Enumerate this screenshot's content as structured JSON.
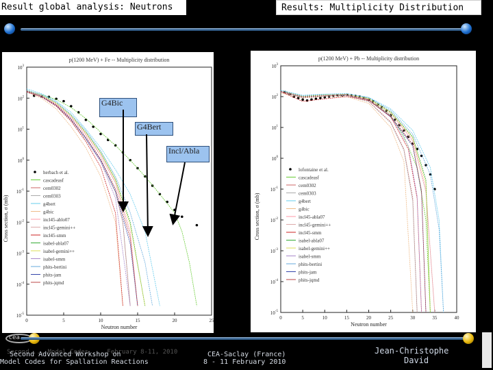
{
  "slide": {
    "title_left": "Result global analysis: Neutrons",
    "title_right": "Results: Multiplicity Distribution"
  },
  "colors": {
    "accent_blue": "#1e6fcf",
    "accent_gold": "#e8b70a",
    "annotation_fill": "#9cc3ef"
  },
  "annotations": [
    {
      "label": "G4Bic"
    },
    {
      "label": "G4Bert"
    },
    {
      "label": "Incl/Abla"
    }
  ],
  "footer": {
    "workshop_line1": "Second Advanced Workshop on",
    "workshop_line2": "Model Codes for Spallation Reactions",
    "workshop_ghost": "Second ... Model Codes ... February 8-11, 2010",
    "location_line1": "CEA-Saclay (France)",
    "location_line2": "8 - 11 February 2010",
    "author_line1": "Jean-Christophe",
    "author_line2": "David",
    "logo_text": "cea"
  },
  "chart_data": [
    {
      "type": "line",
      "title": "p(1200 MeV) + Fe -- Multiplicity distribution",
      "xlabel": "Neutron number",
      "ylabel": "Cross section, σ (mb)",
      "xlim": [
        0,
        25
      ],
      "xticks": [
        0,
        5,
        10,
        15,
        20,
        25
      ],
      "yscale": "log",
      "ylim": [
        1e-05,
        1000
      ],
      "yticks": [
        "10^-5",
        "10^-4",
        "10^-3",
        "10^-2",
        "10^-1",
        "10^0",
        "10^1",
        "10^2",
        "10^3"
      ],
      "legend_position": "lower-left",
      "legend": [
        "herbach et al.",
        "cascadeasf",
        "cem0302",
        "cem0303",
        "g4bert",
        "g4bic",
        "incl45-ablo07",
        "incl45-gemini++",
        "incl45-smm",
        "isabel-abla07",
        "isabel-gemini++",
        "isabel-smm",
        "phits-bertini",
        "phits-jam",
        "phits-jqmd"
      ],
      "series": [
        {
          "name": "herbach et al.",
          "style": "points",
          "color": "#000000",
          "x": [
            1,
            2,
            3,
            4,
            5,
            6,
            7,
            8,
            9,
            10,
            11,
            12,
            13,
            14,
            15,
            16,
            17,
            18,
            19,
            20,
            21,
            23
          ],
          "y": [
            120,
            115,
            110,
            95,
            80,
            55,
            35,
            20,
            12,
            7,
            4.5,
            3,
            1.8,
            1.0,
            0.55,
            0.3,
            0.15,
            0.08,
            0.045,
            0.025,
            0.015,
            0.008
          ]
        },
        {
          "name": "cascadeasf",
          "style": "line",
          "color": "#66cc33",
          "x": [
            0,
            2,
            4,
            6,
            8,
            10,
            12,
            14,
            16,
            18,
            20,
            21,
            22,
            23
          ],
          "y": [
            180,
            130,
            90,
            50,
            22,
            8,
            3,
            1.0,
            0.3,
            0.08,
            0.02,
            0.005,
            0.0005,
            2e-05
          ]
        },
        {
          "name": "cem0302",
          "style": "line",
          "color": "#cc6666",
          "x": [
            0,
            2,
            4,
            6,
            8,
            10,
            12,
            13,
            14
          ],
          "y": [
            160,
            120,
            60,
            20,
            5,
            1,
            0.1,
            0.01,
            2e-05
          ]
        },
        {
          "name": "cem0303",
          "style": "line",
          "color": "#aaaaaa",
          "x": [
            0,
            2,
            4,
            6,
            8,
            10,
            12,
            13,
            14
          ],
          "y": [
            150,
            115,
            55,
            18,
            4.5,
            0.9,
            0.09,
            0.01,
            2e-05
          ]
        },
        {
          "name": "g4bert",
          "style": "line",
          "color": "#66ccee",
          "x": [
            0,
            2,
            4,
            6,
            8,
            10,
            12,
            14,
            16,
            18
          ],
          "y": [
            200,
            140,
            80,
            35,
            10,
            2.5,
            0.5,
            0.08,
            0.005,
            2e-05
          ]
        },
        {
          "name": "g4bic",
          "style": "line",
          "color": "#eebb88",
          "x": [
            0,
            2,
            4,
            6,
            8,
            10,
            12,
            13
          ],
          "y": [
            160,
            100,
            45,
            12,
            2.5,
            0.3,
            0.01,
            2e-05
          ]
        },
        {
          "name": "incl45-ablo07",
          "style": "line",
          "color": "#ff99aa",
          "x": [
            0,
            2,
            4,
            6,
            8,
            10,
            12,
            14,
            15
          ],
          "y": [
            170,
            120,
            65,
            25,
            7,
            1.5,
            0.2,
            0.005,
            2e-05
          ]
        },
        {
          "name": "incl45-gemini++",
          "style": "line",
          "color": "#ddaaaa",
          "x": [
            0,
            2,
            4,
            6,
            8,
            10,
            12,
            14,
            15
          ],
          "y": [
            165,
            118,
            62,
            24,
            6.5,
            1.4,
            0.18,
            0.004,
            2e-05
          ]
        },
        {
          "name": "incl45-smm",
          "style": "line",
          "color": "#cc2222",
          "x": [
            0,
            2,
            4,
            6,
            8,
            10,
            12,
            13
          ],
          "y": [
            160,
            110,
            55,
            18,
            4,
            0.6,
            0.02,
            2e-05
          ]
        },
        {
          "name": "isabel-abla07",
          "style": "line",
          "color": "#33aa33",
          "x": [
            0,
            2,
            4,
            6,
            8,
            10,
            12,
            14,
            16
          ],
          "y": [
            175,
            125,
            70,
            28,
            8,
            1.8,
            0.25,
            0.01,
            2e-05
          ]
        },
        {
          "name": "isabel-gemini++",
          "style": "line",
          "color": "#dddd55",
          "x": [
            0,
            2,
            4,
            6,
            8,
            10,
            12,
            14,
            16
          ],
          "y": [
            172,
            122,
            68,
            27,
            7.5,
            1.7,
            0.22,
            0.008,
            2e-05
          ]
        },
        {
          "name": "isabel-smm",
          "style": "line",
          "color": "#aa88cc",
          "x": [
            0,
            2,
            4,
            6,
            8,
            10,
            12,
            14
          ],
          "y": [
            170,
            118,
            60,
            22,
            5,
            0.9,
            0.06,
            2e-05
          ]
        },
        {
          "name": "phits-bertini",
          "style": "line",
          "color": "#66aadd",
          "x": [
            0,
            2,
            4,
            6,
            8,
            10,
            12,
            14,
            16,
            17
          ],
          "y": [
            180,
            130,
            75,
            30,
            9,
            2,
            0.3,
            0.02,
            0.0005,
            2e-05
          ]
        },
        {
          "name": "phits-jam",
          "style": "line",
          "color": "#3344aa",
          "x": [
            0,
            2,
            4,
            6,
            8,
            10,
            12,
            14,
            15
          ],
          "y": [
            165,
            112,
            58,
            20,
            5,
            1,
            0.1,
            0.002,
            2e-05
          ]
        },
        {
          "name": "phits-jqmd",
          "style": "line",
          "color": "#bb4444",
          "x": [
            0,
            2,
            4,
            6,
            8,
            10,
            12,
            14,
            15
          ],
          "y": [
            168,
            115,
            60,
            21,
            5.5,
            1.1,
            0.12,
            0.003,
            2e-05
          ]
        }
      ]
    },
    {
      "type": "line",
      "title": "p(1200 MeV) + Pb -- Multiplicity distribution",
      "xlabel": "Neutron number",
      "ylabel": "Cross section, σ (mb)",
      "xlim": [
        0,
        40
      ],
      "xticks": [
        0,
        5,
        10,
        15,
        20,
        25,
        30,
        35,
        40
      ],
      "yscale": "log",
      "ylim": [
        1e-05,
        1000
      ],
      "yticks": [
        "10^-5",
        "10^-4",
        "10^-3",
        "10^-2",
        "10^-1",
        "10^0",
        "10^1",
        "10^2",
        "10^3"
      ],
      "legend_position": "lower-left",
      "legend": [
        "lofontaine et al.",
        "cascadeasf",
        "cem0302",
        "cem0303",
        "g4bert",
        "g4bic",
        "incl45-abla07",
        "incl45-gemini++",
        "incl45-smm",
        "isabel-abla07",
        "isabel-gemini++",
        "isabel-smm",
        "phits-bertini",
        "phits-jam",
        "phits-jqmd"
      ],
      "series": [
        {
          "name": "lofontaine et al.",
          "style": "points",
          "color": "#000000",
          "x": [
            1,
            2,
            3,
            4,
            5,
            6,
            7,
            8,
            9,
            10,
            11,
            12,
            13,
            14,
            15,
            16,
            17,
            18,
            19,
            20,
            21,
            22,
            23,
            24,
            25,
            26,
            27,
            28,
            29,
            30,
            31,
            32,
            33,
            34,
            35
          ],
          "y": [
            140,
            120,
            100,
            90,
            80,
            75,
            80,
            85,
            90,
            95,
            100,
            105,
            110,
            110,
            115,
            110,
            105,
            100,
            90,
            80,
            70,
            55,
            45,
            35,
            25,
            18,
            12,
            8,
            5,
            3,
            2,
            1.2,
            0.6,
            0.3,
            0.1
          ]
        },
        {
          "name": "cascadeasf",
          "style": "line",
          "color": "#66cc33",
          "x": [
            0,
            5,
            10,
            15,
            20,
            25,
            28,
            31,
            33,
            34
          ],
          "y": [
            150,
            100,
            110,
            115,
            80,
            25,
            5,
            0.5,
            0.01,
            1e-05
          ]
        },
        {
          "name": "cem0302",
          "style": "line",
          "color": "#cc6666",
          "x": [
            0,
            5,
            10,
            15,
            20,
            25,
            28,
            30,
            31
          ],
          "y": [
            140,
            95,
            105,
            110,
            70,
            15,
            2,
            0.05,
            1e-05
          ]
        },
        {
          "name": "cem0303",
          "style": "line",
          "color": "#aaaaaa",
          "x": [
            0,
            5,
            10,
            15,
            20,
            25,
            28,
            30,
            31
          ],
          "y": [
            138,
            93,
            103,
            108,
            68,
            14,
            1.8,
            0.04,
            1e-05
          ]
        },
        {
          "name": "g4bert",
          "style": "line",
          "color": "#66ccee",
          "x": [
            0,
            5,
            10,
            15,
            20,
            25,
            30,
            34,
            36,
            37
          ],
          "y": [
            160,
            110,
            120,
            125,
            95,
            40,
            8,
            0.5,
            0.01,
            1e-05
          ]
        },
        {
          "name": "g4bic",
          "style": "line",
          "color": "#eebb88",
          "x": [
            0,
            5,
            10,
            15,
            20,
            25,
            28,
            30
          ],
          "y": [
            130,
            90,
            100,
            100,
            60,
            10,
            0.8,
            1e-05
          ]
        },
        {
          "name": "incl45-abla07",
          "style": "line",
          "color": "#ff99aa",
          "x": [
            0,
            5,
            10,
            15,
            20,
            25,
            30,
            33,
            35
          ],
          "y": [
            150,
            100,
            112,
            118,
            85,
            30,
            4,
            0.1,
            1e-05
          ]
        },
        {
          "name": "incl45-gemini++",
          "style": "line",
          "color": "#ddaaaa",
          "x": [
            0,
            5,
            10,
            15,
            20,
            25,
            30,
            33,
            35
          ],
          "y": [
            148,
            98,
            110,
            116,
            83,
            28,
            3.5,
            0.08,
            1e-05
          ]
        },
        {
          "name": "incl45-smm",
          "style": "line",
          "color": "#cc2222",
          "x": [
            0,
            5,
            10,
            15,
            20,
            25,
            29,
            31,
            32
          ],
          "y": [
            145,
            70,
            85,
            100,
            75,
            22,
            2,
            0.05,
            1e-05
          ]
        },
        {
          "name": "isabel-abla07",
          "style": "line",
          "color": "#33aa33",
          "x": [
            0,
            5,
            10,
            15,
            20,
            25,
            30,
            33,
            34
          ],
          "y": [
            152,
            102,
            114,
            120,
            88,
            32,
            5,
            0.2,
            1e-05
          ]
        },
        {
          "name": "isabel-gemini++",
          "style": "line",
          "color": "#dddd55",
          "x": [
            0,
            5,
            10,
            15,
            20,
            25,
            30,
            33,
            34
          ],
          "y": [
            150,
            100,
            112,
            118,
            86,
            30,
            4.5,
            0.15,
            1e-05
          ]
        },
        {
          "name": "isabel-smm",
          "style": "line",
          "color": "#aa88cc",
          "x": [
            0,
            5,
            10,
            15,
            20,
            25,
            29,
            31,
            32
          ],
          "y": [
            148,
            98,
            108,
            112,
            78,
            24,
            2.5,
            0.06,
            1e-05
          ]
        },
        {
          "name": "phits-bertini",
          "style": "line",
          "color": "#66aadd",
          "x": [
            0,
            5,
            10,
            15,
            20,
            25,
            30,
            34,
            36,
            37
          ],
          "y": [
            158,
            108,
            118,
            122,
            92,
            36,
            6,
            0.3,
            0.005,
            1e-05
          ]
        },
        {
          "name": "phits-jam",
          "style": "line",
          "color": "#3344aa",
          "x": [
            0,
            5,
            10,
            15,
            20,
            25,
            30,
            32,
            33
          ],
          "y": [
            145,
            96,
            106,
            112,
            78,
            22,
            2.5,
            0.08,
            1e-05
          ]
        },
        {
          "name": "phits-jqmd",
          "style": "line",
          "color": "#bb4444",
          "x": [
            0,
            5,
            10,
            15,
            20,
            25,
            30,
            32,
            33
          ],
          "y": [
            146,
            97,
            107,
            113,
            79,
            23,
            2.8,
            0.09,
            1e-05
          ]
        }
      ]
    }
  ]
}
